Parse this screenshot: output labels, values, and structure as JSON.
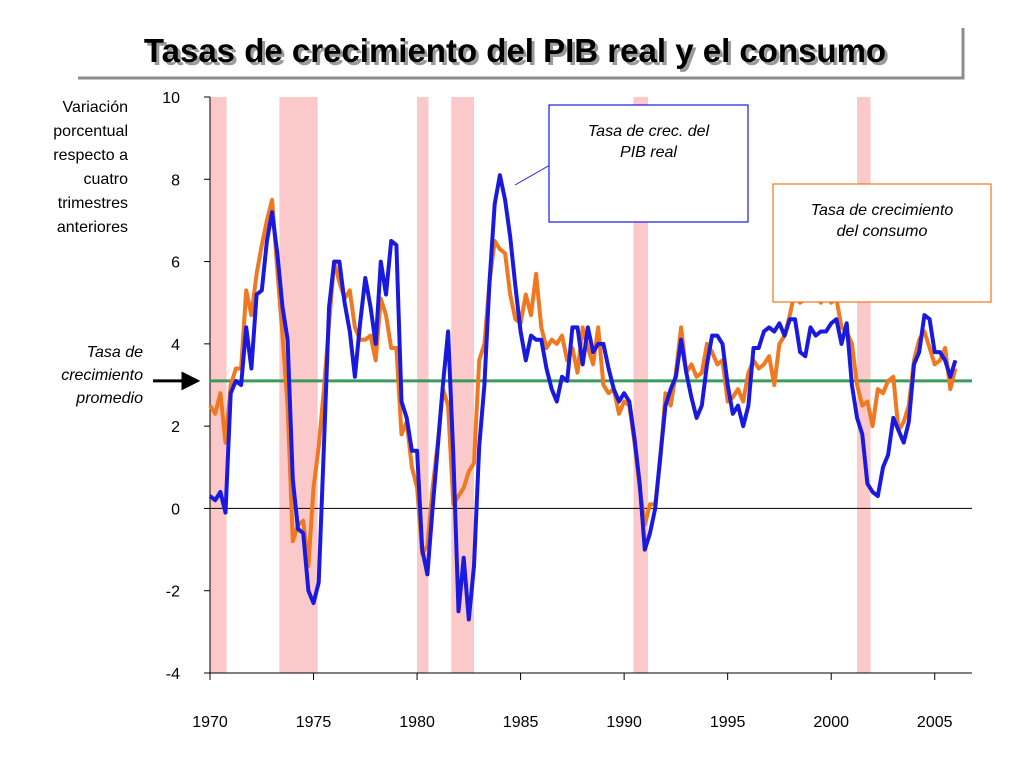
{
  "chart_data": {
    "type": "line",
    "title": "Tasas de crecimiento del PIB real y el consumo",
    "ylabel": [
      "Variación",
      "porcentual",
      "respecto a",
      "cuatro",
      "trimestres",
      "anteriores"
    ],
    "xlim": [
      1970,
      2006.8
    ],
    "ylim": [
      -4,
      10
    ],
    "xticks": [
      1970,
      1975,
      1980,
      1985,
      1990,
      1995,
      2000,
      2005
    ],
    "yticks": [
      -4,
      -2,
      0,
      2,
      4,
      6,
      8,
      10
    ],
    "shaded_regions": {
      "color": "#fbc9c9",
      "ranges": [
        [
          1970.0,
          1970.8
        ],
        [
          1973.35,
          1975.2
        ],
        [
          1980.0,
          1980.55
        ],
        [
          1981.65,
          1982.75
        ],
        [
          1990.45,
          1991.15
        ],
        [
          2001.25,
          2001.9
        ]
      ]
    },
    "reference_line": {
      "value": 3.1,
      "color": "#3a9a5a",
      "label": [
        "Tasa de",
        "crecimiento",
        "promedio"
      ]
    },
    "annotations": [
      {
        "series": 0,
        "text": [
          "Tasa de crec. del",
          "PIB real"
        ]
      },
      {
        "series": 1,
        "text": [
          "Tasa de crecimiento",
          "del consumo"
        ]
      }
    ],
    "x": [
      1970,
      1970.25,
      1970.5,
      1970.75,
      1971,
      1971.25,
      1971.5,
      1971.75,
      1972,
      1972.25,
      1972.5,
      1972.75,
      1973,
      1973.25,
      1973.5,
      1973.75,
      1974,
      1974.25,
      1974.5,
      1974.75,
      1975,
      1975.25,
      1975.5,
      1975.75,
      1976,
      1976.25,
      1976.5,
      1976.75,
      1977,
      1977.25,
      1977.5,
      1977.75,
      1978,
      1978.25,
      1978.5,
      1978.75,
      1979,
      1979.25,
      1979.5,
      1979.75,
      1980,
      1980.25,
      1980.5,
      1980.75,
      1981,
      1981.25,
      1981.5,
      1981.75,
      1982,
      1982.25,
      1982.5,
      1982.75,
      1983,
      1983.25,
      1983.5,
      1983.75,
      1984,
      1984.25,
      1984.5,
      1984.75,
      1985,
      1985.25,
      1985.5,
      1985.75,
      1986,
      1986.25,
      1986.5,
      1986.75,
      1987,
      1987.25,
      1987.5,
      1987.75,
      1988,
      1988.25,
      1988.5,
      1988.75,
      1989,
      1989.25,
      1989.5,
      1989.75,
      1990,
      1990.25,
      1990.5,
      1990.75,
      1991,
      1991.25,
      1991.5,
      1991.75,
      1992,
      1992.25,
      1992.5,
      1992.75,
      1993,
      1993.25,
      1993.5,
      1993.75,
      1994,
      1994.25,
      1994.5,
      1994.75,
      1995,
      1995.25,
      1995.5,
      1995.75,
      1996,
      1996.25,
      1996.5,
      1996.75,
      1997,
      1997.25,
      1997.5,
      1997.75,
      1998,
      1998.25,
      1998.5,
      1998.75,
      1999,
      1999.25,
      1999.5,
      1999.75,
      2000,
      2000.25,
      2000.5,
      2000.75,
      2001,
      2001.25,
      2001.5,
      2001.75,
      2002,
      2002.25,
      2002.5,
      2002.75,
      2003,
      2003.25,
      2003.5,
      2003.75,
      2004,
      2004.25,
      2004.5,
      2004.75,
      2005,
      2005.25,
      2005.5,
      2005.75,
      2006
    ],
    "series": [
      {
        "name": "PIB real",
        "color": "#1a1adf",
        "values": [
          0.3,
          0.2,
          0.4,
          -0.1,
          2.8,
          3.1,
          3.0,
          4.4,
          3.4,
          5.2,
          5.3,
          6.5,
          7.2,
          6.2,
          4.9,
          4.1,
          0.7,
          -0.5,
          -0.6,
          -2.0,
          -2.3,
          -1.8,
          1.5,
          4.9,
          6.0,
          6.0,
          5.0,
          4.3,
          3.2,
          4.5,
          5.6,
          4.9,
          4.0,
          6.0,
          5.2,
          6.5,
          6.4,
          2.6,
          2.2,
          1.4,
          1.4,
          -1.0,
          -1.6,
          0.0,
          1.5,
          3.0,
          4.3,
          1.3,
          -2.5,
          -1.2,
          -2.7,
          -1.4,
          1.5,
          3.0,
          5.5,
          7.4,
          8.1,
          7.5,
          6.6,
          5.4,
          4.3,
          3.6,
          4.2,
          4.1,
          4.1,
          3.4,
          2.9,
          2.6,
          3.2,
          3.1,
          4.4,
          4.4,
          3.5,
          4.4,
          3.8,
          4.0,
          4.0,
          3.4,
          2.9,
          2.6,
          2.8,
          2.6,
          1.7,
          0.6,
          -1.0,
          -0.6,
          0.0,
          1.3,
          2.5,
          2.9,
          3.2,
          4.1,
          3.3,
          2.7,
          2.2,
          2.5,
          3.5,
          4.2,
          4.2,
          4.0,
          3.0,
          2.3,
          2.5,
          2.0,
          2.5,
          3.9,
          3.9,
          4.3,
          4.4,
          4.3,
          4.5,
          4.2,
          4.6,
          4.6,
          3.8,
          3.7,
          4.4,
          4.2,
          4.3,
          4.3,
          4.5,
          4.6,
          4.0,
          4.5,
          3.0,
          2.2,
          1.8,
          0.6,
          0.4,
          0.3,
          1.0,
          1.3,
          2.2,
          1.9,
          1.6,
          2.1,
          3.5,
          3.8,
          4.7,
          4.6,
          3.8,
          3.8,
          3.6,
          3.2,
          3.6
        ]
      },
      {
        "name": "Consumo",
        "color": "#f07820",
        "values": [
          2.5,
          2.3,
          2.8,
          1.6,
          3.0,
          3.4,
          3.4,
          5.3,
          4.7,
          5.7,
          6.4,
          7.0,
          7.5,
          5.8,
          4.2,
          2.5,
          -0.8,
          -0.4,
          -0.3,
          -1.4,
          0.5,
          1.5,
          2.9,
          4.5,
          6.0,
          5.5,
          5.1,
          5.3,
          4.4,
          4.1,
          4.1,
          4.2,
          3.6,
          5.1,
          4.7,
          3.9,
          3.9,
          1.8,
          2.1,
          1.0,
          0.5,
          -1.1,
          -0.9,
          0.5,
          1.6,
          2.9,
          2.5,
          0.1,
          0.3,
          0.5,
          0.9,
          1.1,
          3.6,
          4.0,
          5.5,
          6.5,
          6.3,
          6.2,
          5.2,
          4.6,
          4.5,
          5.2,
          4.7,
          5.7,
          4.4,
          3.9,
          4.1,
          4.0,
          4.2,
          3.6,
          3.9,
          3.3,
          4.4,
          3.9,
          3.5,
          4.4,
          3.0,
          2.8,
          2.9,
          2.3,
          2.6,
          2.5,
          1.6,
          0.5,
          -0.4,
          0.1,
          0.1,
          1.2,
          2.8,
          2.5,
          3.3,
          4.4,
          3.3,
          3.5,
          3.2,
          3.3,
          4.0,
          3.8,
          3.5,
          3.6,
          2.6,
          2.7,
          2.9,
          2.6,
          3.3,
          3.6,
          3.4,
          3.5,
          3.7,
          3.0,
          4.0,
          4.2,
          4.7,
          5.3,
          5.0,
          5.1,
          5.1,
          5.3,
          5.0,
          5.2,
          5.0,
          5.1,
          4.4,
          4.3,
          4.0,
          3.0,
          2.5,
          2.6,
          2.0,
          2.9,
          2.8,
          3.1,
          3.2,
          1.9,
          2.1,
          2.5,
          3.6,
          4.1,
          4.3,
          3.9,
          3.5,
          3.6,
          3.9,
          2.9,
          3.4
        ]
      }
    ]
  }
}
